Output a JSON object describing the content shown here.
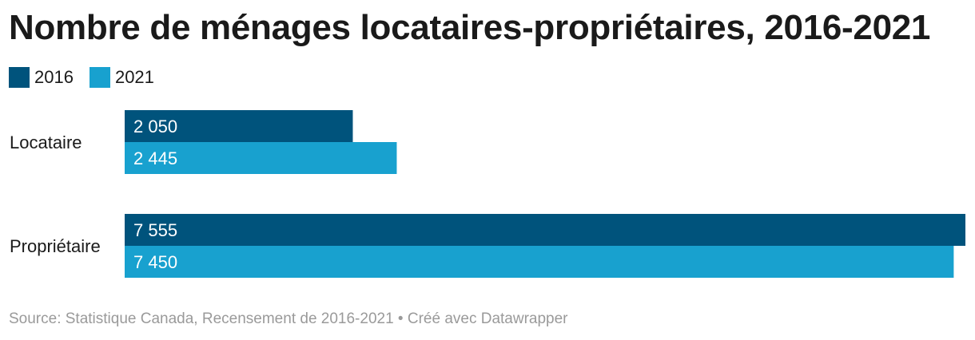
{
  "chart_data": {
    "type": "bar",
    "orientation": "horizontal",
    "title": "Nombre de ménages locataires-propriétaires, 2016-2021",
    "categories": [
      "Locataire",
      "Propriétaire"
    ],
    "series": [
      {
        "name": "2016",
        "color": "#00537c",
        "values": [
          2050,
          7555
        ],
        "labels": [
          "2 050",
          "7 555"
        ]
      },
      {
        "name": "2021",
        "color": "#18a1cf",
        "values": [
          2445,
          7450
        ],
        "labels": [
          "2 445",
          "7 450"
        ]
      }
    ],
    "xlim": [
      0,
      7555
    ],
    "grid": false,
    "legend": "top-left",
    "source": "Source: Statistique Canada, Recensement de 2016-2021 • Créé avec Datawrapper"
  }
}
